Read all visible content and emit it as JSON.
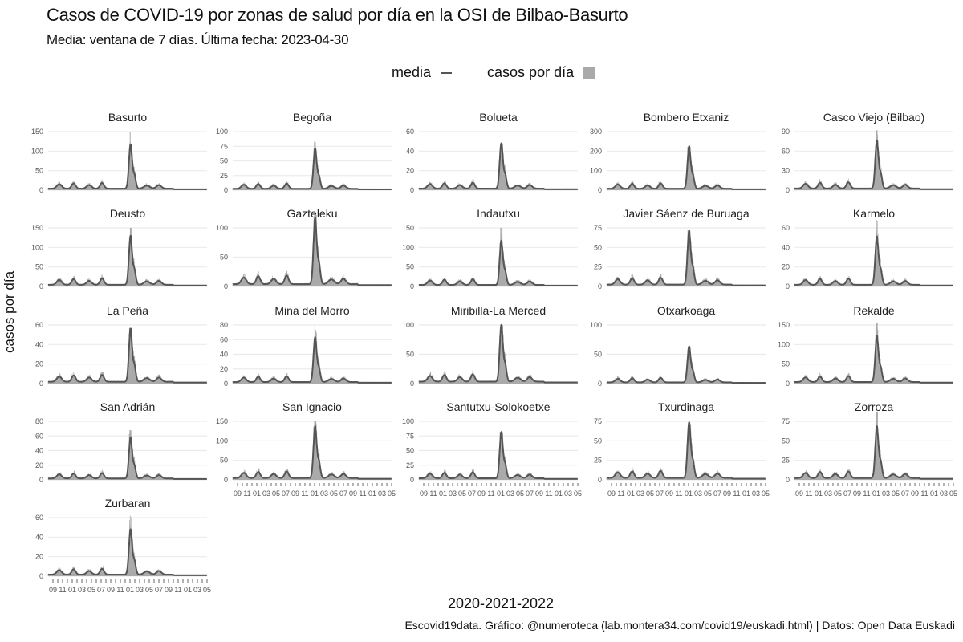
{
  "title": "Casos de COVID-19 por zonas de salud por día en la OSI de Bilbao-Basurto",
  "subtitle": "Media: ventana de 7 días. Última fecha: 2023-04-30",
  "legend": {
    "media": "media",
    "daily": "casos por día"
  },
  "colors": {
    "media": "#555555",
    "daily": "#aaaaaa",
    "grid": "#ebebeb"
  },
  "caption": "Escovid19data. Gráfico: @numeroteca (lab.montera34.com/covid19/euskadi.html) | Datos: Open Data Euskadi",
  "chart_data": {
    "type": "area",
    "title": "Casos de COVID-19 por zonas de salud por día en la OSI de Bilbao-Basurto",
    "xlabel": "2020-2021-2022",
    "ylabel": "casos por día",
    "x_range": [
      "2020-08",
      "2023-05"
    ],
    "x_tick_labels": [
      "09",
      "11",
      "01",
      "03",
      "05",
      "07",
      "09",
      "11",
      "01",
      "03",
      "05",
      "07",
      "09",
      "11",
      "01",
      "03",
      "05"
    ],
    "peak_date": "2022-01",
    "grid": true,
    "legend_position": "top",
    "panels": [
      {
        "name": "Basurto",
        "yticks": [
          0,
          50,
          100,
          150
        ],
        "peak_media": 115,
        "peak_daily": 150
      },
      {
        "name": "Begoña",
        "yticks": [
          0,
          25,
          50,
          75,
          100
        ],
        "peak_media": 70,
        "peak_daily": 83
      },
      {
        "name": "Bolueta",
        "yticks": [
          0,
          20,
          40,
          60
        ],
        "peak_media": 47,
        "peak_daily": 48
      },
      {
        "name": "Bombero Etxaniz",
        "yticks": [
          0,
          100,
          200,
          300
        ],
        "peak_media": 220,
        "peak_daily": 222
      },
      {
        "name": "Casco Viejo (Bilbao)",
        "yticks": [
          0,
          30,
          60,
          90
        ],
        "peak_media": 75,
        "peak_daily": 92
      },
      {
        "name": "Deusto",
        "yticks": [
          0,
          50,
          100,
          150
        ],
        "peak_media": 127,
        "peak_daily": 150
      },
      {
        "name": "Gazteleku",
        "yticks": [
          0,
          50,
          100
        ],
        "peak_media": 115,
        "peak_daily": 122
      },
      {
        "name": "Indautxu",
        "yticks": [
          0,
          50,
          100,
          150
        ],
        "peak_media": 115,
        "peak_daily": 150
      },
      {
        "name": "Javier Sáenz de Buruaga",
        "yticks": [
          0,
          25,
          50,
          75
        ],
        "peak_media": 70,
        "peak_daily": 72
      },
      {
        "name": "Karmelo",
        "yticks": [
          0,
          20,
          40,
          60
        ],
        "peak_media": 50,
        "peak_daily": 68
      },
      {
        "name": "La Peña",
        "yticks": [
          0,
          20,
          40,
          60
        ],
        "peak_media": 55,
        "peak_daily": 57
      },
      {
        "name": "Mina del Morro",
        "yticks": [
          0,
          20,
          40,
          60,
          80
        ],
        "peak_media": 62,
        "peak_daily": 80
      },
      {
        "name": "Miribilla-La Merced",
        "yticks": [
          0,
          50,
          100
        ],
        "peak_media": 98,
        "peak_daily": 100
      },
      {
        "name": "Otxarkoaga",
        "yticks": [
          0,
          50,
          100
        ],
        "peak_media": 62,
        "peak_daily": 63
      },
      {
        "name": "Rekalde",
        "yticks": [
          0,
          50,
          100,
          150
        ],
        "peak_media": 120,
        "peak_daily": 155
      },
      {
        "name": "San Adrián",
        "yticks": [
          0,
          20,
          40,
          60,
          80
        ],
        "peak_media": 57,
        "peak_daily": 68
      },
      {
        "name": "San Ignacio",
        "yticks": [
          0,
          50,
          100,
          150
        ],
        "peak_media": 135,
        "peak_daily": 150
      },
      {
        "name": "Santutxu-Solokoetxe",
        "yticks": [
          0,
          25,
          50,
          75,
          100
        ],
        "peak_media": 80,
        "peak_daily": 82
      },
      {
        "name": "Txurdinaga",
        "yticks": [
          0,
          25,
          50,
          75
        ],
        "peak_media": 72,
        "peak_daily": 73
      },
      {
        "name": "Zorroza",
        "yticks": [
          0,
          25,
          50,
          75
        ],
        "peak_media": 67,
        "peak_daily": 87
      },
      {
        "name": "Zurbaran",
        "yticks": [
          0,
          20,
          40,
          60
        ],
        "peak_media": 47,
        "peak_daily": 62
      }
    ]
  }
}
